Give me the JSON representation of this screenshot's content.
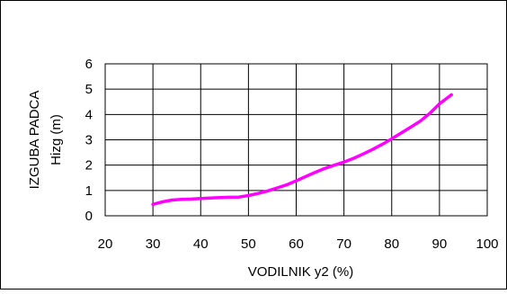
{
  "chart_data": {
    "type": "line",
    "title": "",
    "xlabel": "VODILNIK y2 (%)",
    "ylabel_lines": [
      "IZGUBA PADCA",
      "Hizg (m)"
    ],
    "xlim": [
      20,
      100
    ],
    "ylim": [
      0,
      6
    ],
    "xticks": [
      20,
      30,
      40,
      50,
      60,
      70,
      80,
      90,
      100
    ],
    "yticks": [
      0,
      1,
      2,
      3,
      4,
      5,
      6
    ],
    "grid": true,
    "legend": "none",
    "series": [
      {
        "color": "#ff00ff",
        "x": [
          30,
          32,
          34,
          36,
          38,
          40,
          42,
          44,
          46,
          48,
          50,
          52,
          54,
          56,
          58,
          60,
          62,
          64,
          66,
          68,
          70,
          72,
          74,
          76,
          78,
          80,
          82,
          84,
          86,
          88,
          90,
          92.5
        ],
        "y": [
          0.45,
          0.55,
          0.62,
          0.65,
          0.66,
          0.68,
          0.7,
          0.72,
          0.73,
          0.74,
          0.8,
          0.88,
          0.98,
          1.1,
          1.22,
          1.38,
          1.55,
          1.72,
          1.87,
          2.0,
          2.12,
          2.27,
          2.44,
          2.62,
          2.82,
          3.04,
          3.27,
          3.5,
          3.74,
          4.05,
          4.42,
          4.78
        ]
      }
    ]
  }
}
